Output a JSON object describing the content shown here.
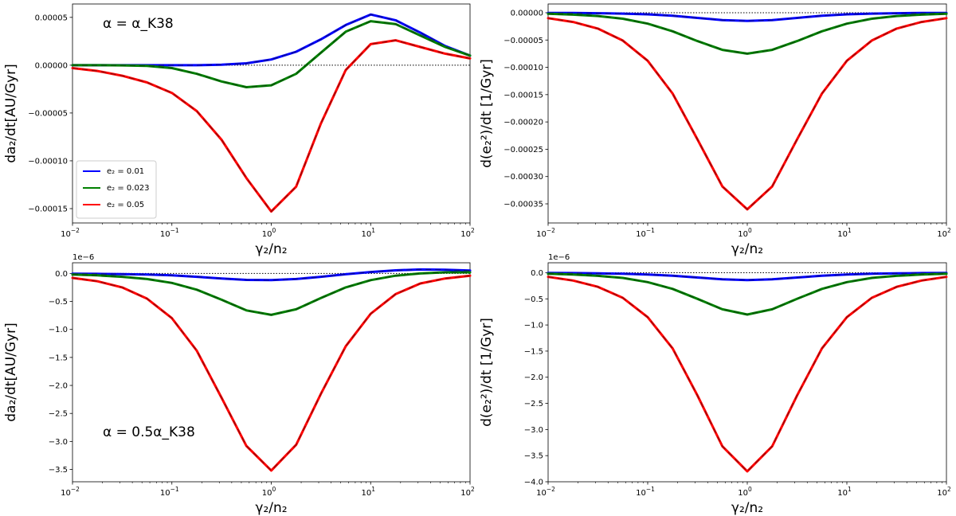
{
  "chart_data": [
    {
      "type": "line",
      "panel": "top-left",
      "xscale": "log",
      "xlim": [
        0.01,
        100
      ],
      "ylim": [
        -0.000165,
        6.4e-05
      ],
      "xticks": [
        {
          "v": 0.01,
          "label": "10"
        },
        {
          "v": 0.1,
          "label": "10"
        },
        {
          "v": 1,
          "label": "10"
        },
        {
          "v": 10,
          "label": "10"
        },
        {
          "v": 100,
          "label": "10"
        }
      ],
      "xtick_exponents": [
        "−2",
        "−1",
        "0",
        "1",
        "2"
      ],
      "yticks": [
        {
          "v": 5e-05,
          "label": "0.00005"
        },
        {
          "v": 0.0,
          "label": "0.00000"
        },
        {
          "v": -5e-05,
          "label": "−0.00005"
        },
        {
          "v": -0.0001,
          "label": "−0.00010"
        },
        {
          "v": -0.00015,
          "label": "−0.00015"
        }
      ],
      "offset_text": "",
      "ylabel": "da₂/dt[AU/Gyr]",
      "xlabel": "γ₂/n₂",
      "annotation": "α = α_K38",
      "legend": {
        "location": "lower-left",
        "entries": [
          "e₂ = 0.01",
          "e₂ = 0.023",
          "e₂ = 0.05"
        ]
      },
      "zero_line": true,
      "x": [
        0.01,
        0.0178,
        0.0316,
        0.0562,
        0.1,
        0.178,
        0.316,
        0.562,
        1,
        1.78,
        3.16,
        5.62,
        10,
        17.8,
        31.6,
        56.2,
        100
      ],
      "series": [
        {
          "name": "e₂ = 0.01",
          "color": "#0000ff",
          "values": [
            0,
            0,
            0,
            0,
            0,
            0,
            5e-07,
            2e-06,
            6e-06,
            1.4e-05,
            2.7e-05,
            4.2e-05,
            5.3e-05,
            4.7e-05,
            3.4e-05,
            2e-05,
            1e-05
          ]
        },
        {
          "name": "e₂ = 0.023",
          "color": "#008000",
          "values": [
            0,
            0,
            -2e-07,
            -8e-07,
            -3e-06,
            -9e-06,
            -1.7e-05,
            -2.3e-05,
            -2.1e-05,
            -9e-06,
            1.3e-05,
            3.5e-05,
            4.6e-05,
            4.3e-05,
            3.1e-05,
            1.9e-05,
            1e-05
          ]
        },
        {
          "name": "e₂ = 0.05",
          "color": "#ff0000",
          "values": [
            -3e-06,
            -6e-06,
            -1.1e-05,
            -1.8e-05,
            -2.9e-05,
            -4.8e-05,
            -7.8e-05,
            -0.000118,
            -0.000153,
            -0.000127,
            -6.1e-05,
            -5e-06,
            2.2e-05,
            2.6e-05,
            1.9e-05,
            1.2e-05,
            7e-06
          ]
        }
      ]
    },
    {
      "type": "line",
      "panel": "top-right",
      "xscale": "log",
      "xlim": [
        0.01,
        100
      ],
      "ylim": [
        -0.000385,
        1.6e-05
      ],
      "xticks": [
        {
          "v": 0.01,
          "label": "10"
        },
        {
          "v": 0.1,
          "label": "10"
        },
        {
          "v": 1,
          "label": "10"
        },
        {
          "v": 10,
          "label": "10"
        },
        {
          "v": 100,
          "label": "10"
        }
      ],
      "xtick_exponents": [
        "−2",
        "−1",
        "0",
        "1",
        "2"
      ],
      "yticks": [
        {
          "v": 0.0,
          "label": "0.00000"
        },
        {
          "v": -5e-05,
          "label": "−0.00005"
        },
        {
          "v": -0.0001,
          "label": "−0.00010"
        },
        {
          "v": -0.00015,
          "label": "−0.00015"
        },
        {
          "v": -0.0002,
          "label": "−0.00020"
        },
        {
          "v": -0.00025,
          "label": "−0.00025"
        },
        {
          "v": -0.0003,
          "label": "−0.00030"
        },
        {
          "v": -0.00035,
          "label": "−0.00035"
        }
      ],
      "offset_text": "",
      "ylabel": "d(e₂²)/dt [1/Gyr]",
      "xlabel": "γ₂/n₂",
      "annotation": "",
      "zero_line": true,
      "x": [
        0.01,
        0.0178,
        0.0316,
        0.0562,
        0.1,
        0.178,
        0.316,
        0.562,
        1,
        1.78,
        3.16,
        5.62,
        10,
        17.8,
        31.6,
        56.2,
        100
      ],
      "series": [
        {
          "name": "e₂ = 0.01",
          "color": "#0000ff",
          "values": [
            -3e-07,
            -5e-07,
            -9e-07,
            -1.6e-06,
            -3e-06,
            -5.5e-06,
            -9.5e-06,
            -1.35e-05,
            -1.5e-05,
            -1.35e-05,
            -9.5e-06,
            -5.5e-06,
            -3e-06,
            -1.6e-06,
            -9e-07,
            -5e-07,
            -3e-07
          ]
        },
        {
          "name": "e₂ = 0.023",
          "color": "#008000",
          "values": [
            -2e-06,
            -3.5e-06,
            -6e-06,
            -1.1e-05,
            -2e-05,
            -3.4e-05,
            -5.2e-05,
            -6.8e-05,
            -7.5e-05,
            -6.8e-05,
            -5.2e-05,
            -3.4e-05,
            -2e-05,
            -1.1e-05,
            -6e-06,
            -3.5e-06,
            -2e-06
          ]
        },
        {
          "name": "e₂ = 0.05",
          "color": "#ff0000",
          "values": [
            -1e-05,
            -1.7e-05,
            -2.9e-05,
            -5.1e-05,
            -8.8e-05,
            -0.000148,
            -0.000232,
            -0.000318,
            -0.00036,
            -0.000318,
            -0.000232,
            -0.000148,
            -8.8e-05,
            -5.1e-05,
            -2.9e-05,
            -1.7e-05,
            -1e-05
          ]
        }
      ]
    },
    {
      "type": "line",
      "panel": "bottom-left",
      "xscale": "log",
      "xlim": [
        0.01,
        100
      ],
      "ylim": [
        -3.72,
        0.19
      ],
      "xticks": [
        {
          "v": 0.01,
          "label": "10"
        },
        {
          "v": 0.1,
          "label": "10"
        },
        {
          "v": 1,
          "label": "10"
        },
        {
          "v": 10,
          "label": "10"
        },
        {
          "v": 100,
          "label": "10"
        }
      ],
      "xtick_exponents": [
        "−2",
        "−1",
        "0",
        "1",
        "2"
      ],
      "yticks": [
        {
          "v": 0.0,
          "label": "0.0"
        },
        {
          "v": -0.5,
          "label": "−0.5"
        },
        {
          "v": -1.0,
          "label": "−1.0"
        },
        {
          "v": -1.5,
          "label": "−1.5"
        },
        {
          "v": -2.0,
          "label": "−2.0"
        },
        {
          "v": -2.5,
          "label": "−2.5"
        },
        {
          "v": -3.0,
          "label": "−3.0"
        },
        {
          "v": -3.5,
          "label": "−3.5"
        }
      ],
      "offset_text": "1e−6",
      "ylabel": "da₂/dt[AU/Gyr]",
      "xlabel": "γ₂/n₂",
      "annotation": "α = 0.5α_K38",
      "zero_line": true,
      "x": [
        0.01,
        0.0178,
        0.0316,
        0.0562,
        0.1,
        0.178,
        0.316,
        0.562,
        1,
        1.78,
        3.16,
        5.62,
        10,
        17.8,
        31.6,
        56.2,
        100
      ],
      "series": [
        {
          "name": "e₂ = 0.01",
          "color": "#0000ff",
          "values": [
            -0.005,
            -0.008,
            -0.012,
            -0.02,
            -0.035,
            -0.06,
            -0.09,
            -0.115,
            -0.12,
            -0.1,
            -0.06,
            -0.015,
            0.025,
            0.055,
            0.07,
            0.065,
            0.05
          ]
        },
        {
          "name": "e₂ = 0.023",
          "color": "#008000",
          "values": [
            -0.02,
            -0.035,
            -0.06,
            -0.1,
            -0.17,
            -0.29,
            -0.47,
            -0.66,
            -0.74,
            -0.64,
            -0.44,
            -0.25,
            -0.12,
            -0.04,
            0.0,
            0.02,
            0.02
          ]
        },
        {
          "name": "e₂ = 0.05",
          "color": "#ff0000",
          "values": [
            -0.08,
            -0.14,
            -0.25,
            -0.45,
            -0.8,
            -1.38,
            -2.22,
            -3.08,
            -3.52,
            -3.06,
            -2.15,
            -1.3,
            -0.72,
            -0.37,
            -0.18,
            -0.09,
            -0.04
          ]
        }
      ]
    },
    {
      "type": "line",
      "panel": "bottom-right",
      "xscale": "log",
      "xlim": [
        0.01,
        100
      ],
      "ylim": [
        -4.0,
        0.19
      ],
      "xticks": [
        {
          "v": 0.01,
          "label": "10"
        },
        {
          "v": 0.1,
          "label": "10"
        },
        {
          "v": 1,
          "label": "10"
        },
        {
          "v": 10,
          "label": "10"
        },
        {
          "v": 100,
          "label": "10"
        }
      ],
      "xtick_exponents": [
        "−2",
        "−1",
        "0",
        "1",
        "2"
      ],
      "yticks": [
        {
          "v": 0.0,
          "label": "0.0"
        },
        {
          "v": -0.5,
          "label": "−0.5"
        },
        {
          "v": -1.0,
          "label": "−1.0"
        },
        {
          "v": -1.5,
          "label": "−1.5"
        },
        {
          "v": -2.0,
          "label": "−2.0"
        },
        {
          "v": -2.5,
          "label": "−2.5"
        },
        {
          "v": -3.0,
          "label": "−3.0"
        },
        {
          "v": -3.5,
          "label": "−3.5"
        },
        {
          "v": -4.0,
          "label": "−4.0"
        }
      ],
      "offset_text": "1e−6",
      "ylabel": "d(e₂²)/dt [1/Gyr]",
      "xlabel": "γ₂/n₂",
      "annotation": "",
      "zero_line": true,
      "x": [
        0.01,
        0.0178,
        0.0316,
        0.0562,
        0.1,
        0.178,
        0.316,
        0.562,
        1,
        1.78,
        3.16,
        5.62,
        10,
        17.8,
        31.6,
        56.2,
        100
      ],
      "series": [
        {
          "name": "e₂ = 0.01",
          "color": "#0000ff",
          "values": [
            -0.004,
            -0.007,
            -0.012,
            -0.02,
            -0.035,
            -0.058,
            -0.092,
            -0.125,
            -0.14,
            -0.125,
            -0.092,
            -0.058,
            -0.035,
            -0.02,
            -0.012,
            -0.007,
            -0.004
          ]
        },
        {
          "name": "e₂ = 0.023",
          "color": "#008000",
          "values": [
            -0.02,
            -0.035,
            -0.06,
            -0.1,
            -0.18,
            -0.31,
            -0.5,
            -0.7,
            -0.8,
            -0.7,
            -0.5,
            -0.31,
            -0.18,
            -0.1,
            -0.06,
            -0.035,
            -0.02
          ]
        },
        {
          "name": "e₂ = 0.05",
          "color": "#ff0000",
          "values": [
            -0.08,
            -0.15,
            -0.27,
            -0.48,
            -0.85,
            -1.45,
            -2.35,
            -3.32,
            -3.8,
            -3.32,
            -2.35,
            -1.45,
            -0.85,
            -0.48,
            -0.27,
            -0.15,
            -0.08
          ]
        }
      ]
    }
  ]
}
